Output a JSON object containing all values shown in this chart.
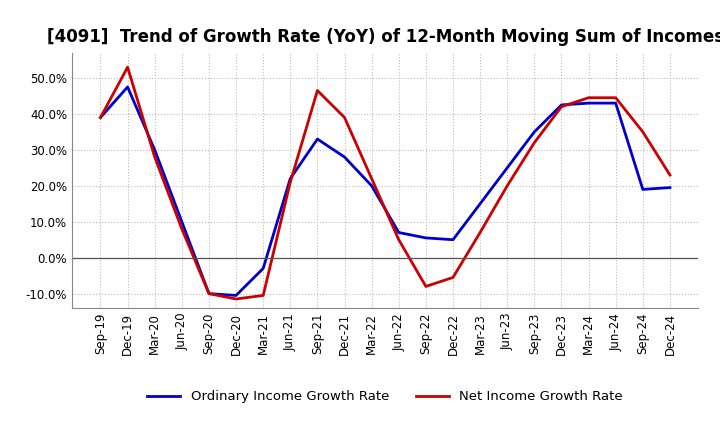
{
  "title": "[4091]  Trend of Growth Rate (YoY) of 12-Month Moving Sum of Incomes",
  "x_labels": [
    "Sep-19",
    "Dec-19",
    "Mar-20",
    "Jun-20",
    "Sep-20",
    "Dec-20",
    "Mar-21",
    "Jun-21",
    "Sep-21",
    "Dec-21",
    "Mar-22",
    "Jun-22",
    "Sep-22",
    "Dec-22",
    "Mar-23",
    "Jun-23",
    "Sep-23",
    "Dec-23",
    "Mar-24",
    "Jun-24",
    "Sep-24",
    "Dec-24"
  ],
  "ordinary_income": [
    39.0,
    47.5,
    30.0,
    10.0,
    -10.0,
    -10.5,
    -3.0,
    22.0,
    33.0,
    28.0,
    20.0,
    7.0,
    5.5,
    5.0,
    15.0,
    25.0,
    35.0,
    42.5,
    43.0,
    43.0,
    19.0,
    19.5
  ],
  "net_income": [
    39.0,
    53.0,
    28.0,
    8.0,
    -10.0,
    -11.5,
    -10.5,
    21.0,
    46.5,
    39.0,
    22.0,
    5.0,
    -8.0,
    -5.5,
    7.0,
    20.0,
    32.0,
    42.0,
    44.5,
    44.5,
    35.0,
    23.0
  ],
  "ordinary_color": "#0000cc",
  "net_color": "#cc0000",
  "ylim": [
    -14,
    57
  ],
  "yticks": [
    -10.0,
    0.0,
    10.0,
    20.0,
    30.0,
    40.0,
    50.0
  ],
  "background_color": "#ffffff",
  "grid_color": "#bbbbbb",
  "legend_ordinary": "Ordinary Income Growth Rate",
  "legend_net": "Net Income Growth Rate",
  "title_fontsize": 12,
  "axis_fontsize": 8.5,
  "legend_fontsize": 9.5,
  "linewidth": 2.0
}
